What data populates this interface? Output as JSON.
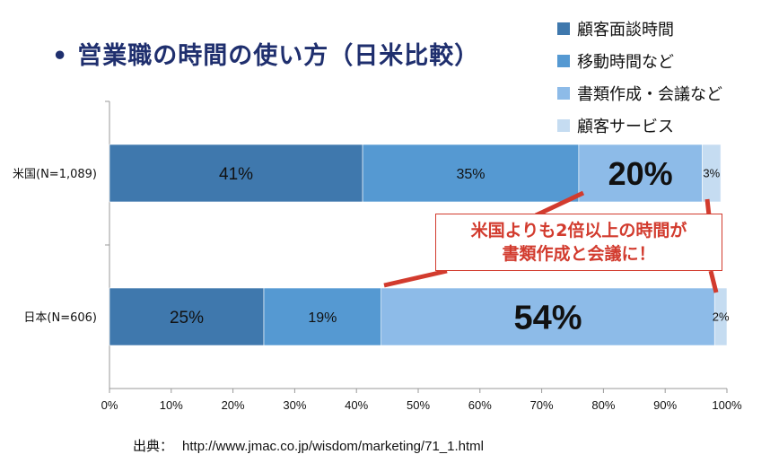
{
  "title": "営業職の時間の使い方（日米比較）",
  "legend": [
    {
      "label": "顧客面談時間",
      "color": "#3f78ad"
    },
    {
      "label": "移動時間など",
      "color": "#5599d2"
    },
    {
      "label": "書類作成・会議など",
      "color": "#8dbbe8"
    },
    {
      "label": "顧客サービス",
      "color": "#c5dcf1"
    }
  ],
  "callout": {
    "line1": "米国よりも2倍以上の時間が",
    "line2": "書類作成と会議に！"
  },
  "source": {
    "label": "出典：",
    "url": "http://www.jmac.co.jp/wisdom/marketing/71_1.html"
  },
  "chart_data": {
    "type": "bar",
    "orientation": "horizontal",
    "stacked": true,
    "categories": [
      "米国(N=1,089)",
      "日本(N=606)"
    ],
    "series": [
      {
        "name": "顧客面談時間",
        "values": [
          41,
          25
        ],
        "labels": [
          "41%",
          "25%"
        ]
      },
      {
        "name": "移動時間など",
        "values": [
          35,
          19
        ],
        "labels": [
          "35%",
          "19%"
        ]
      },
      {
        "name": "書類作成・会議など",
        "values": [
          20,
          54
        ],
        "labels": [
          "20%",
          "54%"
        ]
      },
      {
        "name": "顧客サービス",
        "values": [
          3,
          2
        ],
        "labels": [
          "3%",
          "2%"
        ]
      }
    ],
    "xlim": [
      0,
      100
    ],
    "xticks": [
      "0%",
      "10%",
      "20%",
      "30%",
      "40%",
      "50%",
      "60%",
      "70%",
      "80%",
      "90%",
      "100%"
    ],
    "grid": false,
    "legend_position": "top-right"
  }
}
